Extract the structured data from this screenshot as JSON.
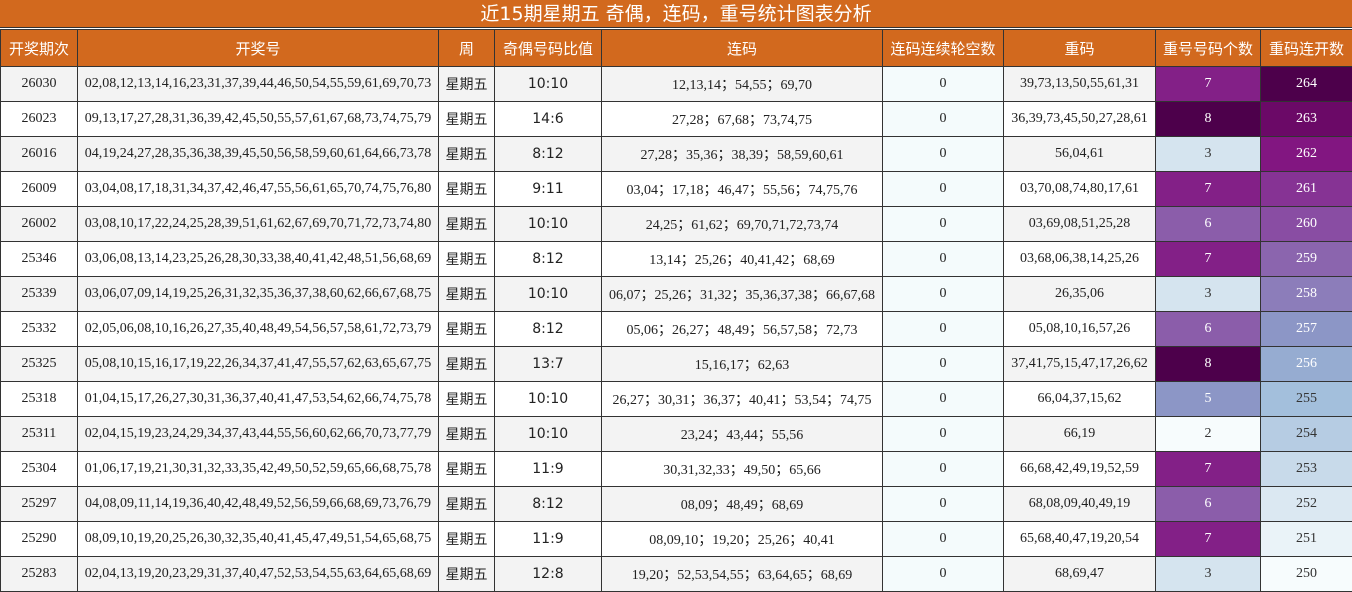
{
  "header": {
    "title": "近15期星期五 奇偶，连码，重号统计图表分析"
  },
  "table": {
    "columns": [
      "开奖期次",
      "开奖号",
      "周",
      "奇偶号码比值",
      "连码",
      "连码连续轮空数",
      "重码",
      "重号号码个数",
      "重码连开数"
    ],
    "rows": [
      [
        "26030",
        "02,08,12,13,14,16,23,31,37,39,44,46,50,54,55,59,61,69,70,73",
        "星期五",
        "10:10",
        "12,13,14；54,55；69,70",
        0,
        "39,73,13,50,55,61,31",
        7,
        264
      ],
      [
        "26023",
        "09,13,17,27,28,31,36,39,42,45,50,55,57,61,67,68,73,74,75,79",
        "星期五",
        "14:6",
        "27,28；67,68；73,74,75",
        0,
        "36,39,73,45,50,27,28,61",
        8,
        263
      ],
      [
        "26016",
        "04,19,24,27,28,35,36,38,39,45,50,56,58,59,60,61,64,66,73,78",
        "星期五",
        "8:12",
        "27,28；35,36；38,39；58,59,60,61",
        0,
        "56,04,61",
        3,
        262
      ],
      [
        "26009",
        "03,04,08,17,18,31,34,37,42,46,47,55,56,61,65,70,74,75,76,80",
        "星期五",
        "9:11",
        "03,04；17,18；46,47；55,56；74,75,76",
        0,
        "03,70,08,74,80,17,61",
        7,
        261
      ],
      [
        "26002",
        "03,08,10,17,22,24,25,28,39,51,61,62,67,69,70,71,72,73,74,80",
        "星期五",
        "10:10",
        "24,25；61,62；69,70,71,72,73,74",
        0,
        "03,69,08,51,25,28",
        6,
        260
      ],
      [
        "25346",
        "03,06,08,13,14,23,25,26,28,30,33,38,40,41,42,48,51,56,68,69",
        "星期五",
        "8:12",
        "13,14；25,26；40,41,42；68,69",
        0,
        "03,68,06,38,14,25,26",
        7,
        259
      ],
      [
        "25339",
        "03,06,07,09,14,19,25,26,31,32,35,36,37,38,60,62,66,67,68,75",
        "星期五",
        "10:10",
        "06,07；25,26；31,32；35,36,37,38；66,67,68",
        0,
        "26,35,06",
        3,
        258
      ],
      [
        "25332",
        "02,05,06,08,10,16,26,27,35,40,48,49,54,56,57,58,61,72,73,79",
        "星期五",
        "8:12",
        "05,06；26,27；48,49；56,57,58；72,73",
        0,
        "05,08,10,16,57,26",
        6,
        257
      ],
      [
        "25325",
        "05,08,10,15,16,17,19,22,26,34,37,41,47,55,57,62,63,65,67,75",
        "星期五",
        "13:7",
        "15,16,17；62,63",
        0,
        "37,41,75,15,47,17,26,62",
        8,
        256
      ],
      [
        "25318",
        "01,04,15,17,26,27,30,31,36,37,40,41,47,53,54,62,66,74,75,78",
        "星期五",
        "10:10",
        "26,27；30,31；36,37；40,41；53,54；74,75",
        0,
        "66,04,37,15,62",
        5,
        255
      ],
      [
        "25311",
        "02,04,15,19,23,24,29,34,37,43,44,55,56,60,62,66,70,73,77,79",
        "星期五",
        "10:10",
        "23,24；43,44；55,56",
        0,
        "66,19",
        2,
        254
      ],
      [
        "25304",
        "01,06,17,19,21,30,31,32,33,35,42,49,50,52,59,65,66,68,75,78",
        "星期五",
        "11:9",
        "30,31,32,33；49,50；65,66",
        0,
        "66,68,42,49,19,52,59",
        7,
        253
      ],
      [
        "25297",
        "04,08,09,11,14,19,36,40,42,48,49,52,56,59,66,68,69,73,76,79",
        "星期五",
        "8:12",
        "08,09；48,49；68,69",
        0,
        "68,08,09,40,49,19",
        6,
        252
      ],
      [
        "25290",
        "08,09,10,19,20,25,26,30,32,35,40,41,45,47,49,51,54,65,68,75",
        "星期五",
        "11:9",
        "08,09,10；19,20；25,26；40,41",
        0,
        "65,68,40,47,19,20,54",
        7,
        251
      ],
      [
        "25283",
        "02,04,13,19,20,23,29,31,37,40,47,52,53,54,55,63,64,65,68,69",
        "星期五",
        "12:8",
        "19,20；52,53,54,55；63,64,65；68,69",
        0,
        "68,69,47",
        3,
        250
      ]
    ]
  }
}
